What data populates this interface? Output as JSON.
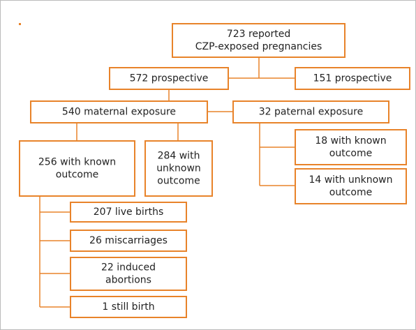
{
  "nodes": [
    {
      "lines": [
        "723 reported",
        "CZP-exposed pregnancies"
      ]
    },
    {
      "lines": [
        "572 prospective"
      ]
    },
    {
      "lines": [
        "151 prospective"
      ]
    },
    {
      "lines": [
        "540 maternal exposure"
      ]
    },
    {
      "lines": [
        "32 paternal exposure"
      ]
    },
    {
      "lines": [
        "256 with known",
        "outcome"
      ]
    },
    {
      "lines": [
        "284 with",
        "unknown",
        "outcome"
      ]
    },
    {
      "lines": [
        "18 with known",
        "outcome"
      ]
    },
    {
      "lines": [
        "14 with unknown",
        "outcome"
      ]
    },
    {
      "lines": [
        "207 live births"
      ]
    },
    {
      "lines": [
        "26 miscarriages"
      ]
    },
    {
      "lines": [
        "22 induced",
        "abortions"
      ]
    },
    {
      "lines": [
        "1 still birth"
      ]
    }
  ]
}
